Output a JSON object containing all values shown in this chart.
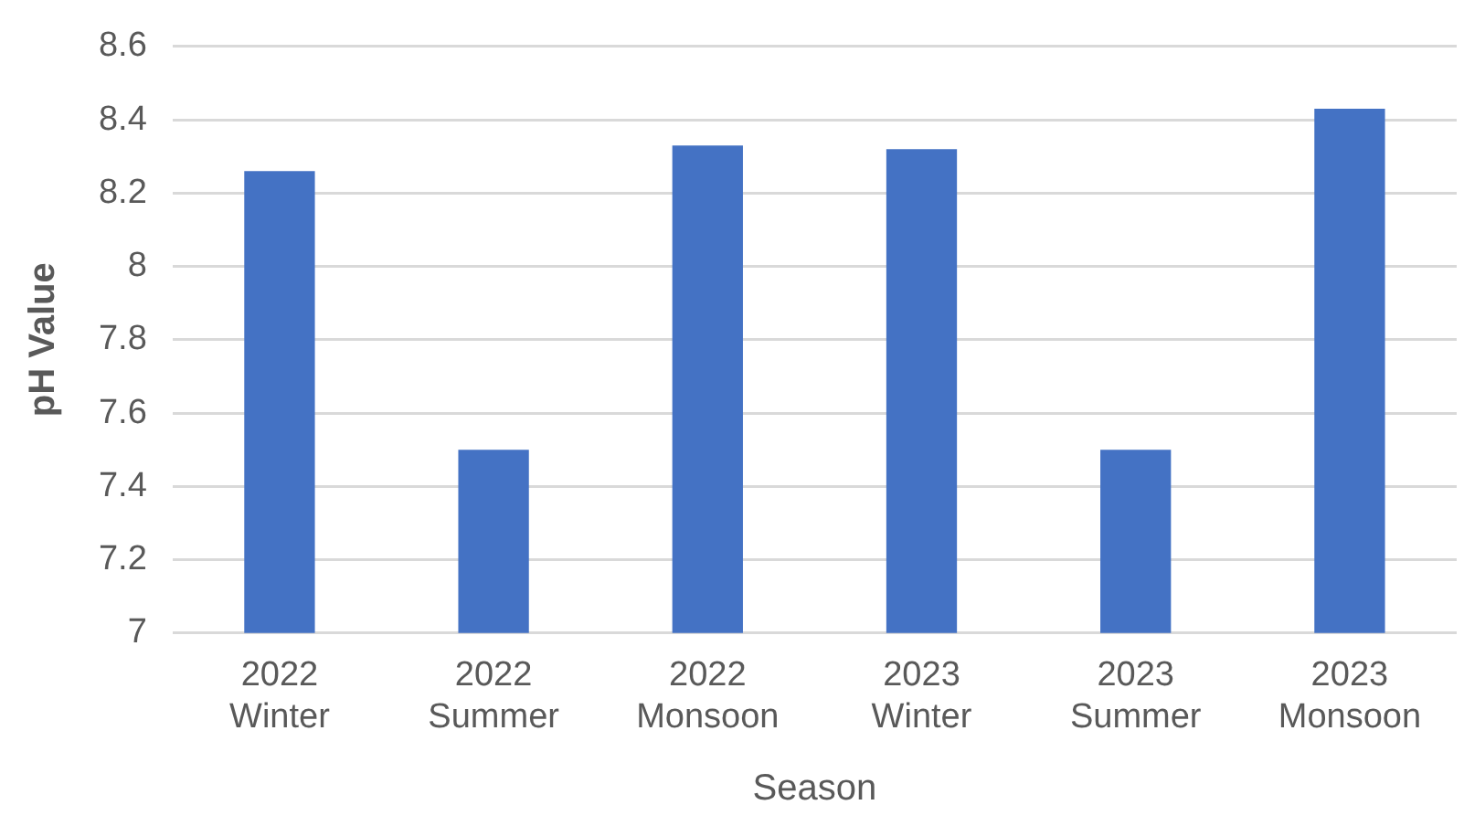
{
  "chart_data": {
    "type": "bar",
    "xlabel": "Season",
    "ylabel": "pH Value",
    "categories": [
      "2022 Winter",
      "2022 Summer",
      "2022 Monsoon",
      "2023 Winter",
      "2023 Summer",
      "2023 Monsoon"
    ],
    "values": [
      8.26,
      7.5,
      8.33,
      8.32,
      7.5,
      8.43
    ],
    "color": "#4472c4",
    "ylim": [
      7,
      8.6
    ],
    "yticks": [
      7,
      7.2,
      7.4,
      7.6,
      7.8,
      8,
      8.2,
      8.4,
      8.6
    ],
    "grid": "y"
  }
}
